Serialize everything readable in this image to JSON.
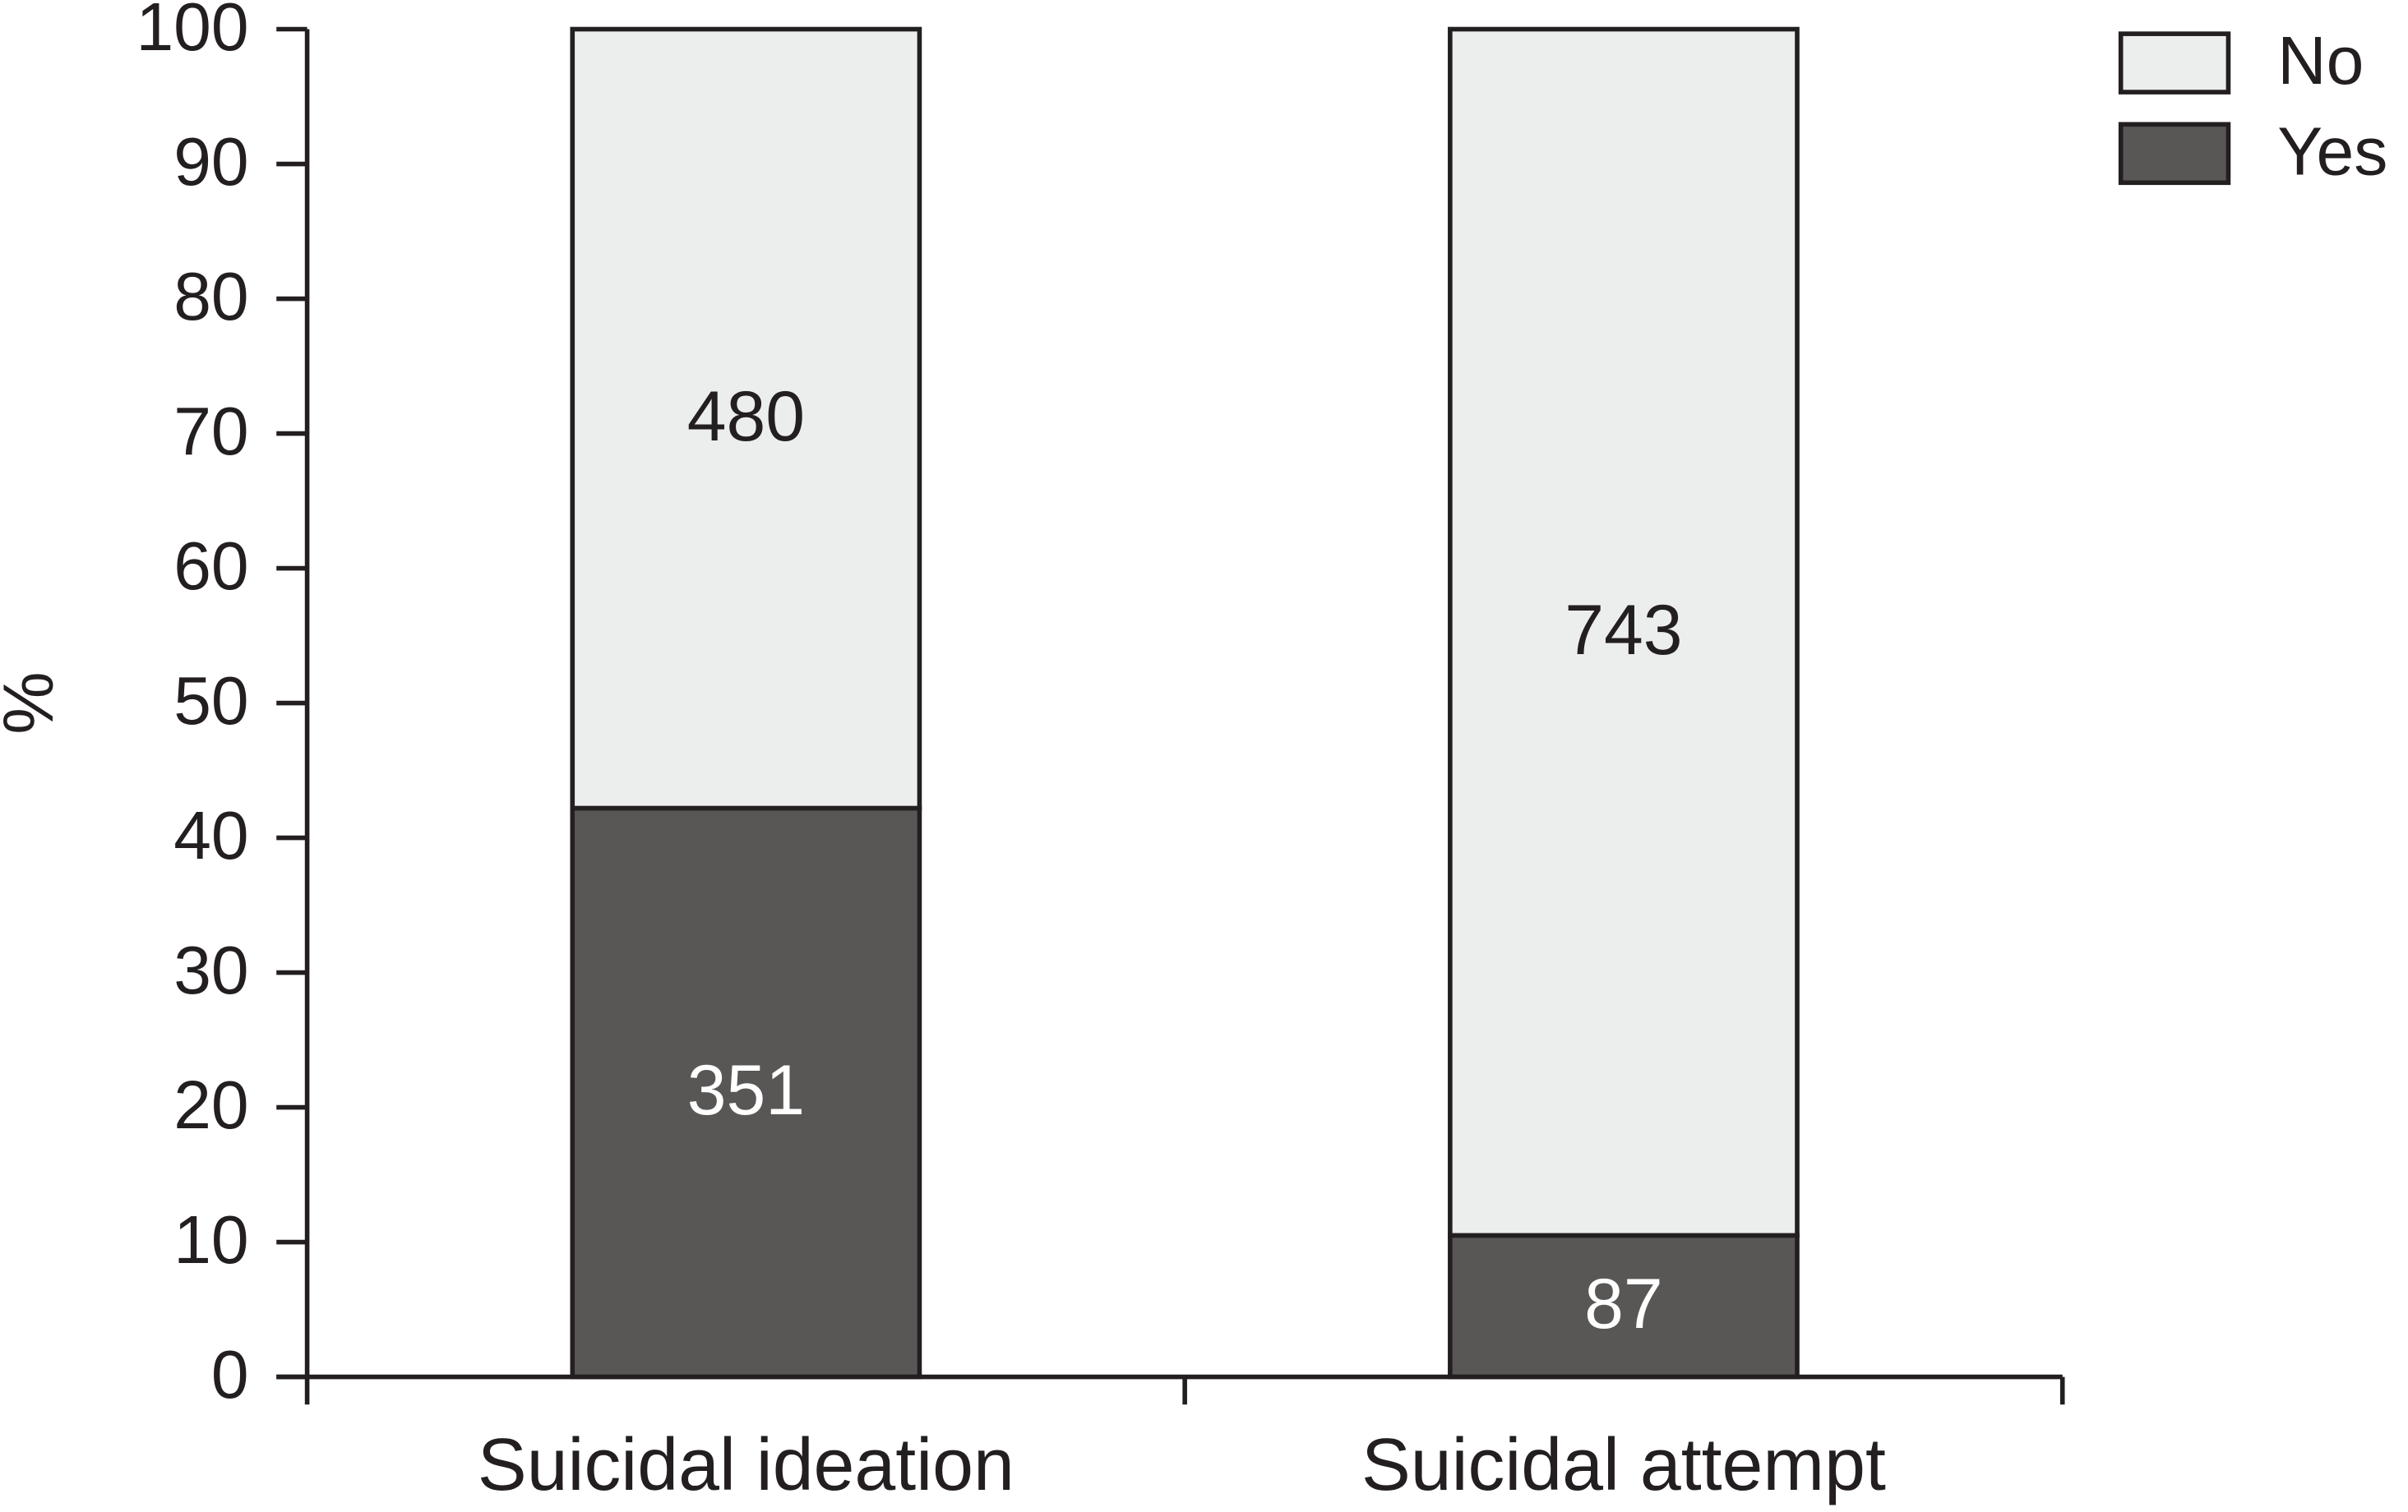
{
  "chart_data": {
    "type": "stacked_bar",
    "y_label": "%",
    "categories": [
      "Suicidal ideation",
      "Suicidal attempt"
    ],
    "series": [
      {
        "name": "Yes",
        "color": "#595756",
        "label_color": "#ffffff",
        "values": [
          42.2,
          10.5
        ],
        "value_labels": [
          "351",
          "87"
        ]
      },
      {
        "name": "No",
        "color": "#eceeed",
        "label_color": "#231f20",
        "values": [
          57.8,
          89.5
        ],
        "value_labels": [
          "480",
          "743"
        ]
      }
    ],
    "ylim": [
      0,
      100
    ],
    "yticks": [
      0,
      10,
      20,
      30,
      40,
      50,
      60,
      70,
      80,
      90,
      100
    ],
    "legend": "top-right"
  }
}
